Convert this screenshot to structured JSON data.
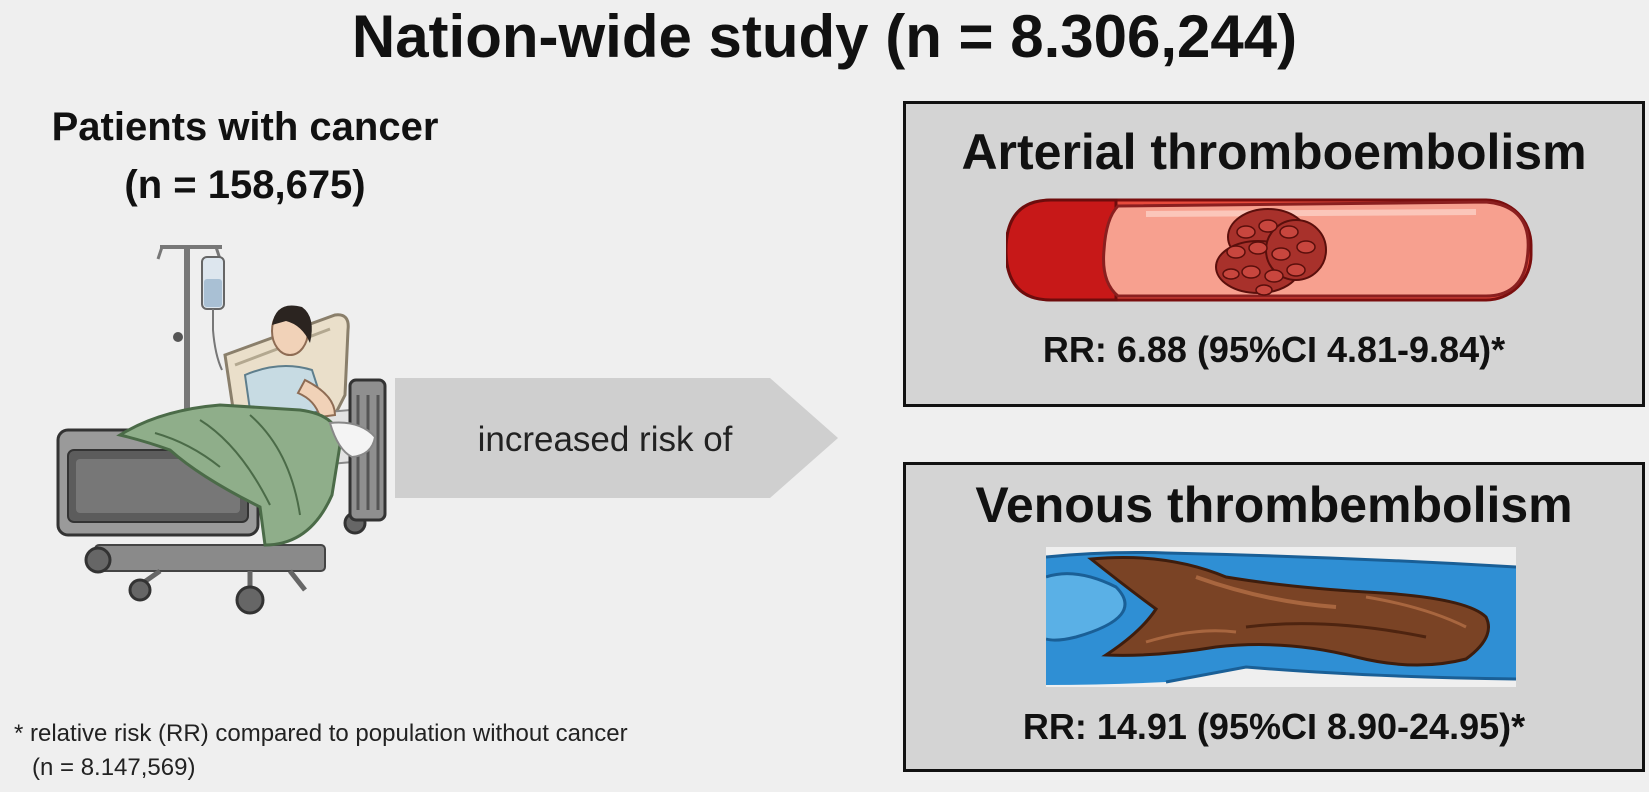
{
  "title": "Nation-wide study (n = 8.306,244)",
  "patients": {
    "label": "Patients with cancer",
    "count": "(n = 158,675)"
  },
  "arrow_label": "increased risk of",
  "outcomes": [
    {
      "title": "Arterial thromboembolism",
      "rr": "RR: 6.88 (95%CI 4.81-9.84)*"
    },
    {
      "title": "Venous thrombembolism",
      "rr": "RR: 14.91 (95%CI 8.90-24.95)*"
    }
  ],
  "footnote": {
    "line1": "* relative risk (RR) compared to population without cancer",
    "line2": "(n = 8.147,569)"
  },
  "colors": {
    "background": "#efefef",
    "panel": "#d4d4d4",
    "arrow": "#cfcfcf",
    "artery": "#c81414",
    "vein": "#2e8fd0",
    "clot": "#6b3a22"
  },
  "icons": [
    "patient-in-hospital-bed-icon",
    "artery-with-clot-icon",
    "vein-with-clot-icon"
  ]
}
